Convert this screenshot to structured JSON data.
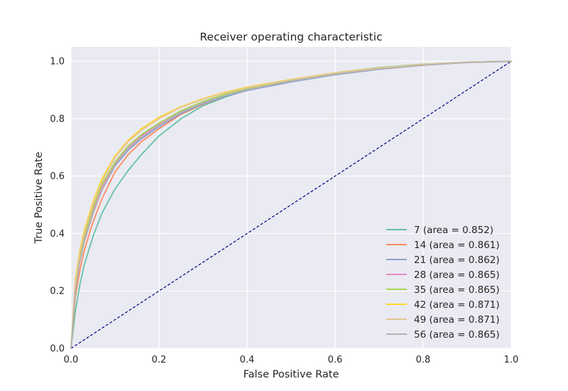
{
  "chart_data": {
    "type": "line",
    "title": "Receiver operating characteristic",
    "xlabel": "False Positive Rate",
    "ylabel": "True Positive Rate",
    "xlim": [
      0.0,
      1.0
    ],
    "ylim": [
      0.0,
      1.05
    ],
    "xticks": [
      "0.0",
      "0.2",
      "0.4",
      "0.6",
      "0.8",
      "1.0"
    ],
    "yticks": [
      "0.0",
      "0.2",
      "0.4",
      "0.6",
      "0.8",
      "1.0"
    ],
    "grid": true,
    "background": "#eaeaf2",
    "legend_position": "lower-right",
    "reference_line": {
      "x": [
        0,
        1
      ],
      "y": [
        0,
        1
      ],
      "color": "#000080",
      "style": "dashed"
    },
    "series": [
      {
        "name": "7 (area = 0.852)",
        "color": "#66c2a5",
        "x": [
          0,
          0.01,
          0.02,
          0.03,
          0.05,
          0.07,
          0.1,
          0.13,
          0.16,
          0.2,
          0.25,
          0.3,
          0.35,
          0.4,
          0.5,
          0.6,
          0.7,
          0.8,
          0.9,
          1.0
        ],
        "y": [
          0,
          0.13,
          0.22,
          0.29,
          0.39,
          0.47,
          0.555,
          0.62,
          0.675,
          0.74,
          0.8,
          0.845,
          0.875,
          0.9,
          0.935,
          0.96,
          0.978,
          0.99,
          0.997,
          1.0
        ]
      },
      {
        "name": "14 (area = 0.861)",
        "color": "#fc8d62",
        "x": [
          0,
          0.01,
          0.02,
          0.03,
          0.05,
          0.07,
          0.1,
          0.13,
          0.16,
          0.2,
          0.25,
          0.3,
          0.35,
          0.4,
          0.5,
          0.6,
          0.7,
          0.8,
          0.9,
          1.0
        ],
        "y": [
          0,
          0.18,
          0.27,
          0.34,
          0.44,
          0.52,
          0.615,
          0.675,
          0.72,
          0.765,
          0.815,
          0.85,
          0.878,
          0.9,
          0.932,
          0.957,
          0.975,
          0.988,
          0.997,
          1.0
        ]
      },
      {
        "name": "21 (area = 0.862)",
        "color": "#8da0cb",
        "x": [
          0,
          0.01,
          0.02,
          0.03,
          0.05,
          0.07,
          0.1,
          0.13,
          0.16,
          0.2,
          0.25,
          0.3,
          0.35,
          0.4,
          0.5,
          0.6,
          0.7,
          0.8,
          0.9,
          1.0
        ],
        "y": [
          0,
          0.21,
          0.3,
          0.37,
          0.47,
          0.55,
          0.635,
          0.69,
          0.73,
          0.772,
          0.818,
          0.852,
          0.878,
          0.898,
          0.928,
          0.953,
          0.972,
          0.986,
          0.996,
          1.0
        ]
      },
      {
        "name": "28 (area = 0.865)",
        "color": "#e78ac3",
        "x": [
          0,
          0.01,
          0.02,
          0.03,
          0.05,
          0.07,
          0.1,
          0.13,
          0.16,
          0.2,
          0.25,
          0.3,
          0.35,
          0.4,
          0.5,
          0.6,
          0.7,
          0.8,
          0.9,
          1.0
        ],
        "y": [
          0,
          0.21,
          0.31,
          0.38,
          0.48,
          0.56,
          0.645,
          0.7,
          0.74,
          0.78,
          0.825,
          0.858,
          0.883,
          0.903,
          0.932,
          0.956,
          0.974,
          0.987,
          0.996,
          1.0
        ]
      },
      {
        "name": "35 (area = 0.865)",
        "color": "#a6d854",
        "x": [
          0,
          0.01,
          0.02,
          0.03,
          0.05,
          0.07,
          0.1,
          0.13,
          0.16,
          0.2,
          0.25,
          0.3,
          0.35,
          0.4,
          0.5,
          0.6,
          0.7,
          0.8,
          0.9,
          1.0
        ],
        "y": [
          0,
          0.22,
          0.32,
          0.39,
          0.49,
          0.57,
          0.65,
          0.705,
          0.745,
          0.785,
          0.828,
          0.86,
          0.885,
          0.905,
          0.934,
          0.958,
          0.975,
          0.988,
          0.997,
          1.0
        ]
      },
      {
        "name": "42 (area = 0.871)",
        "color": "#ffd92f",
        "x": [
          0,
          0.01,
          0.02,
          0.03,
          0.05,
          0.07,
          0.1,
          0.13,
          0.16,
          0.2,
          0.25,
          0.3,
          0.35,
          0.4,
          0.5,
          0.6,
          0.7,
          0.8,
          0.9,
          1.0
        ],
        "y": [
          0,
          0.24,
          0.34,
          0.41,
          0.51,
          0.59,
          0.67,
          0.725,
          0.765,
          0.805,
          0.842,
          0.87,
          0.892,
          0.91,
          0.937,
          0.96,
          0.977,
          0.989,
          0.997,
          1.0
        ]
      },
      {
        "name": "49 (area = 0.871)",
        "color": "#e5c494",
        "x": [
          0,
          0.01,
          0.02,
          0.03,
          0.05,
          0.07,
          0.1,
          0.13,
          0.16,
          0.2,
          0.25,
          0.3,
          0.35,
          0.4,
          0.5,
          0.6,
          0.7,
          0.8,
          0.9,
          1.0
        ],
        "y": [
          0,
          0.23,
          0.33,
          0.4,
          0.5,
          0.58,
          0.665,
          0.72,
          0.76,
          0.8,
          0.84,
          0.868,
          0.89,
          0.908,
          0.936,
          0.959,
          0.976,
          0.989,
          0.997,
          1.0
        ]
      },
      {
        "name": "56 (area = 0.865)",
        "color": "#b3b3b3",
        "x": [
          0,
          0.01,
          0.02,
          0.03,
          0.05,
          0.07,
          0.1,
          0.13,
          0.16,
          0.2,
          0.25,
          0.3,
          0.35,
          0.4,
          0.5,
          0.6,
          0.7,
          0.8,
          0.9,
          1.0
        ],
        "y": [
          0,
          0.2,
          0.3,
          0.37,
          0.47,
          0.55,
          0.64,
          0.695,
          0.735,
          0.777,
          0.822,
          0.856,
          0.881,
          0.901,
          0.931,
          0.955,
          0.973,
          0.986,
          0.996,
          1.0
        ]
      }
    ]
  }
}
